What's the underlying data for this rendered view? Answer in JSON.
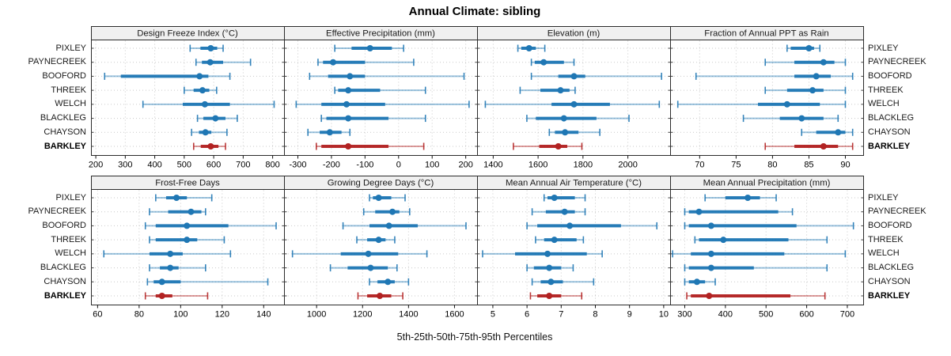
{
  "title": "Annual Climate: sibling",
  "caption": "5th-25th-50th-75th-95th Percentiles",
  "colors": {
    "series": "#1F77B4",
    "highlight": "#B22222",
    "grid": "#C9C9C9",
    "strip_bg": "#F0F0F0",
    "panel_border": "#2B2B2B",
    "tick_text": "#000000",
    "strip_text": "#1A1A1A"
  },
  "sites": [
    {
      "name": "PIXLEY",
      "highlight": false
    },
    {
      "name": "PAYNECREEK",
      "highlight": false
    },
    {
      "name": "BOOFORD",
      "highlight": false
    },
    {
      "name": "THREEK",
      "highlight": false
    },
    {
      "name": "WELCH",
      "highlight": false
    },
    {
      "name": "BLACKLEG",
      "highlight": false
    },
    {
      "name": "CHAYSON",
      "highlight": false
    },
    {
      "name": "BARKLEY",
      "highlight": true
    }
  ],
  "chart_data": {
    "type": "dotplot-percentiles",
    "title": "Annual Climate: sibling",
    "percentile_labels": [
      "5th",
      "25th",
      "50th",
      "75th",
      "95th"
    ],
    "site_order": [
      "PIXLEY",
      "PAYNECREEK",
      "BOOFORD",
      "THREEK",
      "WELCH",
      "BLACKLEG",
      "CHAYSON",
      "BARKLEY"
    ],
    "highlight_site": "BARKLEY",
    "legend_position": "bottom-caption",
    "grid": "dotted-at-ticks",
    "panels": [
      {
        "title": "Design Freeze Index (°C)",
        "xlim": [
          185,
          840
        ],
        "ticks": [
          200,
          300,
          400,
          500,
          600,
          700,
          800
        ],
        "values": [
          [
            520,
            555,
            590,
            612,
            632
          ],
          [
            540,
            560,
            588,
            632,
            725
          ],
          [
            230,
            285,
            552,
            582,
            655
          ],
          [
            500,
            532,
            562,
            585,
            610
          ],
          [
            360,
            495,
            570,
            655,
            805
          ],
          [
            545,
            565,
            606,
            640,
            680
          ],
          [
            525,
            550,
            572,
            592,
            645
          ],
          [
            532,
            556,
            590,
            616,
            640
          ]
        ]
      },
      {
        "title": "Effective Precipitation (mm)",
        "xlim": [
          -340,
          235
        ],
        "ticks": [
          -300,
          -200,
          -100,
          0,
          100,
          200
        ],
        "values": [
          [
            -190,
            -140,
            -85,
            -20,
            15
          ],
          [
            -240,
            -225,
            -195,
            -100,
            45
          ],
          [
            -265,
            -210,
            -145,
            -100,
            195
          ],
          [
            -190,
            -180,
            -150,
            -55,
            80
          ],
          [
            -305,
            -230,
            -155,
            -40,
            210
          ],
          [
            -230,
            -215,
            -150,
            -30,
            80
          ],
          [
            -270,
            -235,
            -205,
            -170,
            -145
          ],
          [
            -245,
            -230,
            -150,
            -30,
            75
          ]
        ]
      },
      {
        "title": "Elevation (m)",
        "xlim": [
          1330,
          2190
        ],
        "ticks": [
          1400,
          1600,
          1800,
          2000
        ],
        "values": [
          [
            1510,
            1525,
            1560,
            1590,
            1630
          ],
          [
            1570,
            1585,
            1625,
            1715,
            1760
          ],
          [
            1570,
            1690,
            1760,
            1810,
            2150
          ],
          [
            1520,
            1610,
            1700,
            1740,
            1765
          ],
          [
            1365,
            1660,
            1760,
            1920,
            2140
          ],
          [
            1550,
            1590,
            1715,
            1860,
            2005
          ],
          [
            1650,
            1675,
            1720,
            1780,
            1875
          ],
          [
            1490,
            1605,
            1690,
            1730,
            1795
          ]
        ]
      },
      {
        "title": "Fraction of Annual PPT as Rain",
        "xlim": [
          66,
          92.5
        ],
        "ticks": [
          70,
          75,
          80,
          85,
          90
        ],
        "values": [
          [
            82,
            82.5,
            85,
            85.7,
            86.5
          ],
          [
            79,
            83,
            87,
            88.5,
            90
          ],
          [
            69.5,
            83,
            86,
            88,
            91
          ],
          [
            79,
            82,
            85.5,
            87,
            90
          ],
          [
            67,
            78,
            82,
            86.5,
            90
          ],
          [
            76,
            81,
            84,
            87,
            89
          ],
          [
            84,
            86,
            89,
            90,
            91
          ],
          [
            79,
            83,
            87,
            89,
            91
          ]
        ]
      },
      {
        "title": "Frost-Free Days",
        "xlim": [
          57,
          150
        ],
        "ticks": [
          60,
          80,
          100,
          120,
          140
        ],
        "values": [
          [
            88,
            93,
            98,
            103,
            115
          ],
          [
            85,
            94,
            105,
            110,
            112
          ],
          [
            83,
            88,
            103,
            123,
            146
          ],
          [
            85,
            88,
            103,
            108,
            121
          ],
          [
            63,
            85,
            95,
            101,
            124
          ],
          [
            85,
            90,
            95,
            99,
            112
          ],
          [
            84,
            87,
            91,
            100,
            142
          ],
          [
            83,
            88,
            91,
            96,
            113
          ]
        ]
      },
      {
        "title": "Growing Degree Days (°C)",
        "xlim": [
          860,
          1700
        ],
        "ticks": [
          1000,
          1200,
          1400,
          1600
        ],
        "values": [
          [
            1230,
            1245,
            1270,
            1325,
            1385
          ],
          [
            1205,
            1255,
            1330,
            1360,
            1405
          ],
          [
            1115,
            1230,
            1315,
            1440,
            1650
          ],
          [
            1175,
            1220,
            1270,
            1300,
            1340
          ],
          [
            895,
            1105,
            1225,
            1355,
            1480
          ],
          [
            1060,
            1135,
            1235,
            1310,
            1350
          ],
          [
            1230,
            1265,
            1310,
            1340,
            1400
          ],
          [
            1180,
            1220,
            1275,
            1325,
            1375
          ]
        ]
      },
      {
        "title": "Mean Annual Air Temperature (°C)",
        "xlim": [
          4.55,
          10.2
        ],
        "ticks": [
          5,
          6,
          7,
          8,
          9,
          10
        ],
        "values": [
          [
            6.5,
            6.6,
            6.8,
            7.4,
            7.7
          ],
          [
            6.15,
            6.55,
            7.1,
            7.4,
            7.7
          ],
          [
            6.0,
            6.3,
            7.25,
            8.75,
            9.8
          ],
          [
            6.25,
            6.5,
            6.8,
            7.45,
            7.65
          ],
          [
            4.7,
            5.65,
            6.6,
            7.75,
            8.2
          ],
          [
            6.0,
            6.2,
            6.65,
            7.0,
            7.35
          ],
          [
            6.15,
            6.4,
            6.7,
            7.05,
            7.95
          ],
          [
            6.1,
            6.3,
            6.65,
            7.0,
            7.6
          ]
        ]
      },
      {
        "title": "Mean Annual Precipitation (mm)",
        "xlim": [
          265,
          740
        ],
        "ticks": [
          300,
          400,
          500,
          600,
          700
        ],
        "values": [
          [
            350,
            400,
            455,
            485,
            525
          ],
          [
            300,
            310,
            335,
            530,
            565
          ],
          [
            300,
            310,
            365,
            575,
            715
          ],
          [
            325,
            335,
            395,
            555,
            650
          ],
          [
            270,
            315,
            365,
            545,
            695
          ],
          [
            300,
            310,
            365,
            470,
            650
          ],
          [
            300,
            310,
            330,
            350,
            375
          ],
          [
            305,
            315,
            360,
            560,
            645
          ]
        ]
      }
    ]
  }
}
